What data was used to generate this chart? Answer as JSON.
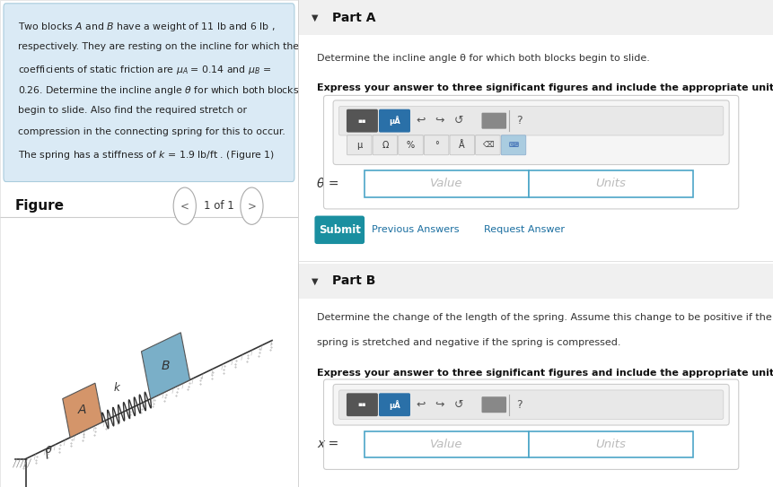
{
  "bg_color": "#ffffff",
  "left_panel_bg": "#daeaf5",
  "right_bg": "#ffffff",
  "part_a_header": "Part A",
  "part_a_desc": "Determine the incline angle θ for which both blocks begin to slide.",
  "part_a_bold": "Express your answer to three significant figures and include the appropriate units.",
  "part_a_label": "θ =",
  "part_b_header": "Part B",
  "part_b_desc1": "Determine the change of the length of the spring. Assume this change to be positive if the",
  "part_b_desc2": "spring is stretched and negative if the spring is compressed.",
  "part_b_bold": "Express your answer to three significant figures and include the appropriate units.",
  "part_b_label": "x =",
  "submit_color": "#1a8fa0",
  "submit_text": "Submit",
  "prev_ans_text": "Previous Answers",
  "req_ans_text": "Request Answer",
  "link_color": "#1a6ea0",
  "divider_color": "#cccccc",
  "input_border": "#4da6c8",
  "block_a_color": "#d4956a",
  "block_b_color": "#7aafc8",
  "incline_color": "#555555",
  "spring_color": "#333333",
  "section_header_bg": "#f0f0f0",
  "toolbar_box_bg": "#f5f5f5",
  "toolbar_box_border": "#cccccc",
  "dark_btn_color": "#555555",
  "blue_btn_color": "#2a70a8",
  "gray_btn_color": "#888888",
  "light_btn_color": "#dddddd",
  "light_blue_btn": "#aacce0",
  "left_divider_color": "#cccccc",
  "panel_border_color": "#dddddd"
}
